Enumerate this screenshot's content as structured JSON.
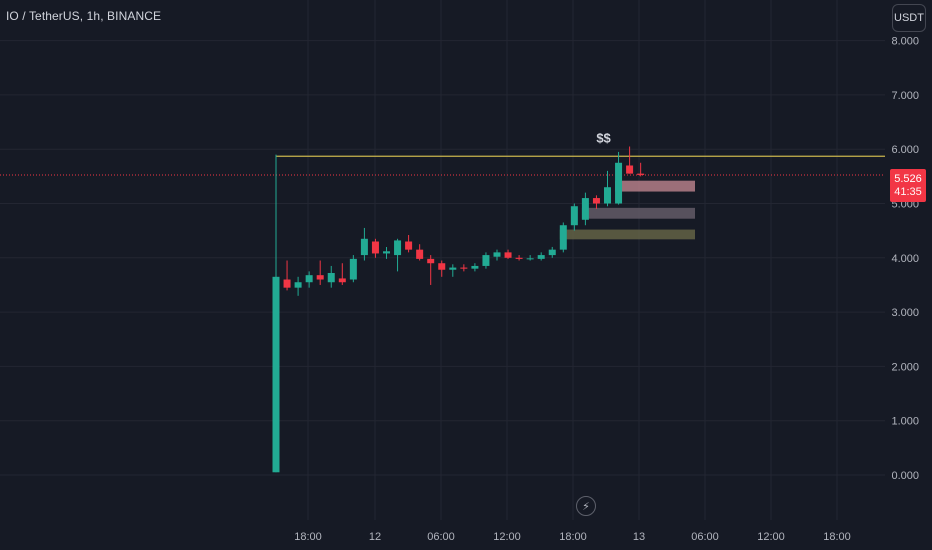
{
  "header": {
    "symbol_title": "IO / TetherUS, 1h, BINANCE",
    "currency_label": "USDT"
  },
  "last_price": {
    "value": "5.526",
    "countdown": "41:35"
  },
  "icons": {
    "bolt": "lightning-bolt-icon"
  },
  "colors": {
    "background": "#161a25",
    "grid": "#232632",
    "text": "#b2b5be",
    "up": "#22ab94",
    "down": "#f23645",
    "level_line": "#c9b44c",
    "last_price_line": "#f23645"
  },
  "chart_data": {
    "type": "candlestick",
    "title": "",
    "ylim": [
      -0.05,
      8.0
    ],
    "y_ticks": [
      {
        "value": 8.0,
        "label": "8.000"
      },
      {
        "value": 7.0,
        "label": "7.000"
      },
      {
        "value": 6.0,
        "label": "6.000"
      },
      {
        "value": 5.0,
        "label": "5.000"
      },
      {
        "value": 4.0,
        "label": "4.000"
      },
      {
        "value": 3.0,
        "label": "3.000"
      },
      {
        "value": 2.0,
        "label": "2.000"
      },
      {
        "value": 1.0,
        "label": "1.000"
      },
      {
        "value": 0.0,
        "label": "0.000"
      }
    ],
    "x_ticks": [
      "18:00",
      "12",
      "06:00",
      "12:00",
      "18:00",
      "13",
      "06:00",
      "12:00",
      "18:00"
    ],
    "candles": [
      {
        "o": 0.05,
        "h": 5.9,
        "l": 0.05,
        "c": 3.65
      },
      {
        "o": 3.6,
        "h": 3.95,
        "l": 3.4,
        "c": 3.45
      },
      {
        "o": 3.45,
        "h": 3.65,
        "l": 3.3,
        "c": 3.55
      },
      {
        "o": 3.55,
        "h": 3.75,
        "l": 3.45,
        "c": 3.68
      },
      {
        "o": 3.68,
        "h": 3.95,
        "l": 3.5,
        "c": 3.6
      },
      {
        "o": 3.55,
        "h": 3.85,
        "l": 3.45,
        "c": 3.72
      },
      {
        "o": 3.62,
        "h": 3.9,
        "l": 3.5,
        "c": 3.55
      },
      {
        "o": 3.6,
        "h": 4.05,
        "l": 3.55,
        "c": 3.98
      },
      {
        "o": 4.05,
        "h": 4.55,
        "l": 3.95,
        "c": 4.35
      },
      {
        "o": 4.3,
        "h": 4.35,
        "l": 4.0,
        "c": 4.08
      },
      {
        "o": 4.08,
        "h": 4.2,
        "l": 3.98,
        "c": 4.12
      },
      {
        "o": 4.05,
        "h": 4.35,
        "l": 3.75,
        "c": 4.32
      },
      {
        "o": 4.3,
        "h": 4.42,
        "l": 4.1,
        "c": 4.15
      },
      {
        "o": 4.15,
        "h": 4.25,
        "l": 3.95,
        "c": 3.98
      },
      {
        "o": 3.98,
        "h": 4.05,
        "l": 3.5,
        "c": 3.9
      },
      {
        "o": 3.9,
        "h": 3.95,
        "l": 3.65,
        "c": 3.78
      },
      {
        "o": 3.78,
        "h": 3.88,
        "l": 3.65,
        "c": 3.82
      },
      {
        "o": 3.82,
        "h": 3.88,
        "l": 3.75,
        "c": 3.8
      },
      {
        "o": 3.8,
        "h": 3.9,
        "l": 3.75,
        "c": 3.85
      },
      {
        "o": 3.85,
        "h": 4.1,
        "l": 3.8,
        "c": 4.05
      },
      {
        "o": 4.02,
        "h": 4.15,
        "l": 3.95,
        "c": 4.1
      },
      {
        "o": 4.1,
        "h": 4.15,
        "l": 3.98,
        "c": 4.0
      },
      {
        "o": 4.0,
        "h": 4.05,
        "l": 3.95,
        "c": 3.98
      },
      {
        "o": 3.98,
        "h": 4.05,
        "l": 3.95,
        "c": 3.99
      },
      {
        "o": 3.98,
        "h": 4.1,
        "l": 3.95,
        "c": 4.05
      },
      {
        "o": 4.05,
        "h": 4.2,
        "l": 4.0,
        "c": 4.15
      },
      {
        "o": 4.15,
        "h": 4.65,
        "l": 4.1,
        "c": 4.6
      },
      {
        "o": 4.6,
        "h": 5.0,
        "l": 4.5,
        "c": 4.95
      },
      {
        "o": 4.7,
        "h": 5.2,
        "l": 4.6,
        "c": 5.1
      },
      {
        "o": 5.1,
        "h": 5.15,
        "l": 4.9,
        "c": 5.0
      },
      {
        "o": 5.0,
        "h": 5.6,
        "l": 4.95,
        "c": 5.3
      },
      {
        "o": 5.0,
        "h": 5.95,
        "l": 4.98,
        "c": 5.75
      },
      {
        "o": 5.7,
        "h": 6.05,
        "l": 5.55,
        "c": 5.55
      },
      {
        "o": 5.55,
        "h": 5.75,
        "l": 5.5,
        "c": 5.526
      }
    ],
    "annotations": [
      {
        "type": "hline",
        "y": 5.87,
        "from_candle": 0,
        "color": "#c9b44c"
      },
      {
        "type": "text",
        "text": "$$",
        "candle": 31,
        "y": 6.05
      },
      {
        "type": "zone",
        "top": 5.42,
        "bottom": 5.22,
        "from_candle": 31,
        "to_candle": 44,
        "color": "#c98c96"
      },
      {
        "type": "zone",
        "top": 4.92,
        "bottom": 4.72,
        "from_candle": 28,
        "to_candle": 44,
        "color": "#6d6470"
      },
      {
        "type": "zone",
        "top": 4.52,
        "bottom": 4.34,
        "from_candle": 26,
        "to_candle": 44,
        "color": "#6e6c49"
      }
    ]
  }
}
